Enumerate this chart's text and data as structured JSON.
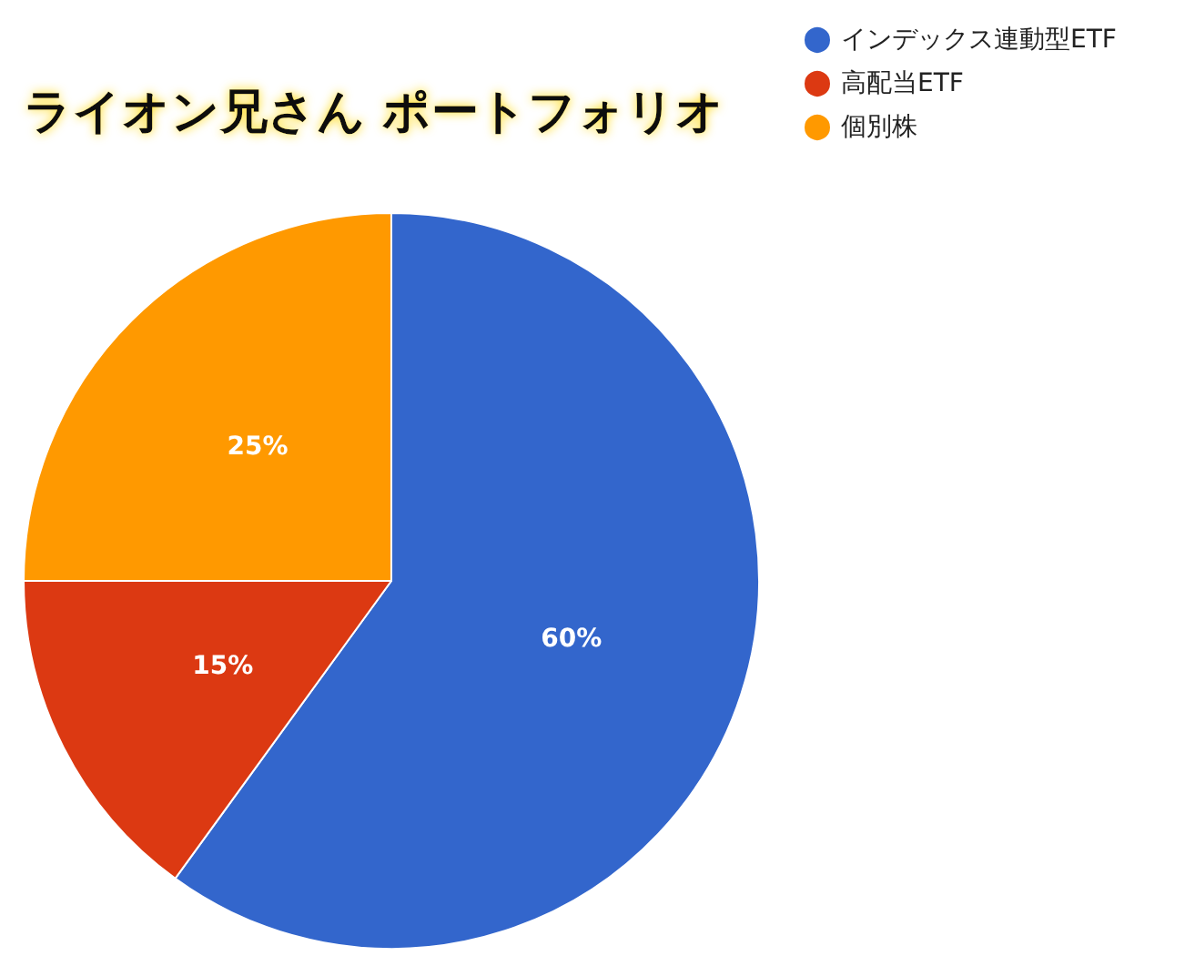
{
  "chart_data": {
    "type": "pie",
    "title": "ライオン兄さん ポートフォリオ",
    "categories": [
      "インデックス連動型ETF",
      "高配当ETF",
      "個別株"
    ],
    "values": [
      60,
      15,
      25
    ],
    "colors": [
      "#3366cc",
      "#dc3912",
      "#ff9900"
    ],
    "value_labels": [
      "60%",
      "15%",
      "25%"
    ],
    "legend": "top right"
  }
}
